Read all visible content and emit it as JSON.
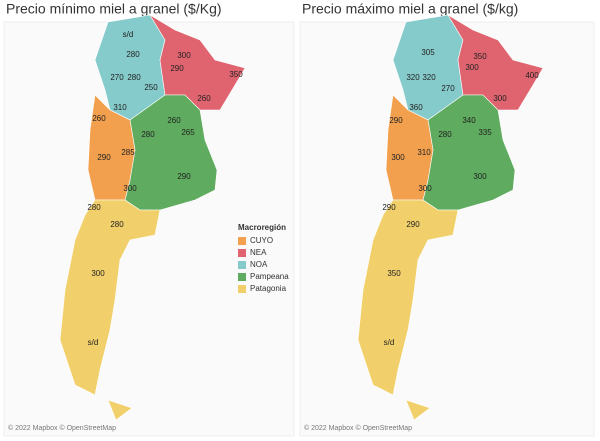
{
  "maps": [
    {
      "title": "Precio mínimo miel a granel ($/Kg)",
      "attribution": "© 2022 Mapbox © OpenStreetMap",
      "labels": [
        {
          "text": "s/d",
          "region": 2
        },
        {
          "text": 280,
          "region": 2
        },
        {
          "text": 300,
          "region": 1
        },
        {
          "text": 290,
          "region": 1
        },
        {
          "text": 350,
          "region": 1
        },
        {
          "text": 270,
          "region": 2
        },
        {
          "text": 280,
          "region": 2
        },
        {
          "text": 250,
          "region": 2
        },
        {
          "text": 260,
          "region": 1
        },
        {
          "text": 310,
          "region": 2
        },
        {
          "text": 260,
          "region": 0
        },
        {
          "text": 260,
          "region": 3
        },
        {
          "text": 280,
          "region": 3
        },
        {
          "text": 265,
          "region": 3
        },
        {
          "text": 290,
          "region": 0
        },
        {
          "text": 285,
          "region": 0
        },
        {
          "text": 300,
          "region": 3
        },
        {
          "text": 290,
          "region": 3
        },
        {
          "text": 280,
          "region": 4
        },
        {
          "text": 280,
          "region": 4
        },
        {
          "text": 300,
          "region": 4
        },
        {
          "text": "s/d",
          "region": 4
        }
      ]
    },
    {
      "title": "Precio máximo miel a granel ($/kg)",
      "attribution": "© 2022 Mapbox © OpenStreetMap",
      "labels": [
        {
          "text": 305,
          "region": 2
        },
        {
          "text": 350,
          "region": 1
        },
        {
          "text": 320,
          "region": 2
        },
        {
          "text": 320,
          "region": 2
        },
        {
          "text": 300,
          "region": 1
        },
        {
          "text": 400,
          "region": 1
        },
        {
          "text": 270,
          "region": 2
        },
        {
          "text": 360,
          "region": 2
        },
        {
          "text": 300,
          "region": 1
        },
        {
          "text": 290,
          "region": 0
        },
        {
          "text": 340,
          "region": 3
        },
        {
          "text": 335,
          "region": 3
        },
        {
          "text": 280,
          "region": 3
        },
        {
          "text": 300,
          "region": 0
        },
        {
          "text": 310,
          "region": 0
        },
        {
          "text": 300,
          "region": 3
        },
        {
          "text": 300,
          "region": 3
        },
        {
          "text": 290,
          "region": 4
        },
        {
          "text": 290,
          "region": 4
        },
        {
          "text": 350,
          "region": 4
        },
        {
          "text": "s/d",
          "region": 4
        }
      ]
    }
  ],
  "legend": {
    "title": "Macroregión",
    "items": [
      {
        "name": "CUYO",
        "color": "#f2a04e"
      },
      {
        "name": "NEA",
        "color": "#e0646f"
      },
      {
        "name": "NOA",
        "color": "#86cbcb"
      },
      {
        "name": "Pampeana",
        "color": "#5fab5f"
      },
      {
        "name": "Patagonia",
        "color": "#f1d06c"
      }
    ]
  }
}
